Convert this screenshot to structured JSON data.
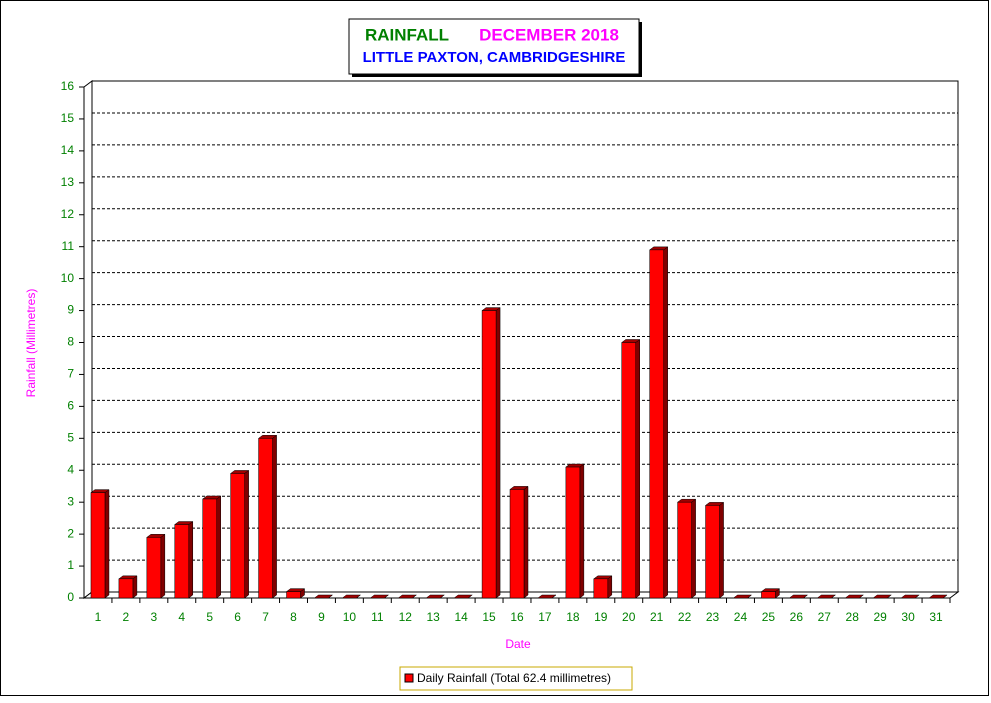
{
  "chart_data": {
    "type": "bar",
    "title": "RAINFALL",
    "title_date": "DECEMBER 2018",
    "subtitle": "LITTLE PAXTON, CAMBRIDGESHIRE",
    "x_label": "Date",
    "y_label": "Rainfall  (Millimetres)",
    "categories": [
      "1",
      "2",
      "3",
      "4",
      "5",
      "6",
      "7",
      "8",
      "9",
      "10",
      "11",
      "12",
      "13",
      "14",
      "15",
      "16",
      "17",
      "18",
      "19",
      "20",
      "21",
      "22",
      "23",
      "24",
      "25",
      "26",
      "27",
      "28",
      "29",
      "30",
      "31"
    ],
    "series": [
      {
        "name": "Daily Rainfall (Total 62.4 millimetres)",
        "color": "#ff0000",
        "values": [
          3.3,
          0.6,
          1.9,
          2.3,
          3.1,
          3.9,
          5.0,
          0.2,
          0,
          0,
          0,
          0,
          0,
          0,
          9.0,
          3.4,
          0,
          4.1,
          0.6,
          8.0,
          10.9,
          3.0,
          2.9,
          0,
          0.2,
          0,
          0,
          0,
          0,
          0,
          0
        ]
      }
    ],
    "ylim": [
      0,
      16
    ],
    "yticks": [
      0,
      1,
      2,
      3,
      4,
      5,
      6,
      7,
      8,
      9,
      10,
      11,
      12,
      13,
      14,
      15,
      16
    ],
    "grid": true
  }
}
